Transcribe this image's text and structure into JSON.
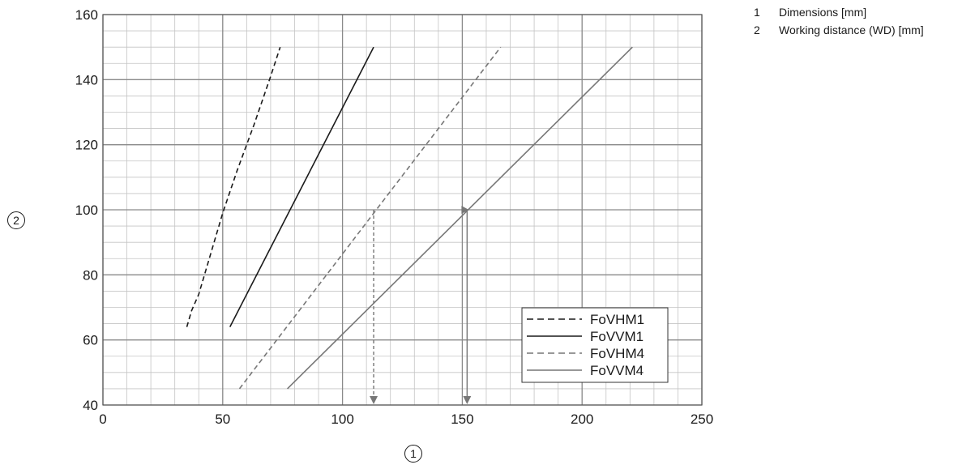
{
  "chart_data": {
    "type": "line",
    "xlim": [
      0,
      250
    ],
    "ylim": [
      40,
      160
    ],
    "x_ticks": [
      0,
      50,
      100,
      150,
      200,
      250
    ],
    "y_ticks": [
      40,
      60,
      80,
      100,
      120,
      140,
      160
    ],
    "xlabel": "1",
    "ylabel": "2",
    "grid": true,
    "legend_position": "bottom-right",
    "series": [
      {
        "name": "FoVHM1",
        "style": "dashed",
        "color": "#1a1a1a",
        "points": [
          [
            35,
            64
          ],
          [
            37,
            69
          ],
          [
            40,
            74
          ],
          [
            50,
            99
          ],
          [
            56,
            112
          ],
          [
            63,
            126
          ],
          [
            70,
            141
          ],
          [
            74,
            150
          ]
        ]
      },
      {
        "name": "FoVVM1",
        "style": "solid",
        "color": "#1a1a1a",
        "points": [
          [
            53,
            64
          ],
          [
            113,
            150
          ]
        ]
      },
      {
        "name": "FoVHM4",
        "style": "dashed",
        "color": "#777777",
        "points": [
          [
            57,
            45
          ],
          [
            166,
            150
          ]
        ]
      },
      {
        "name": "FoVVM4",
        "style": "solid",
        "color": "#777777",
        "points": [
          [
            77,
            45
          ],
          [
            221,
            150
          ]
        ]
      }
    ],
    "annotations": [
      {
        "type": "arrow",
        "style": "dashed",
        "color": "#777777",
        "from": [
          113,
          100
        ],
        "to": [
          113,
          40
        ]
      },
      {
        "type": "arrow",
        "style": "solid",
        "color": "#777777",
        "from": [
          152,
          100
        ],
        "to": [
          152,
          40
        ]
      },
      {
        "type": "marker",
        "style": "solid",
        "color": "#777777",
        "at": [
          150,
          100
        ]
      }
    ]
  },
  "key": [
    {
      "num": "1",
      "label": "Dimensions [mm]"
    },
    {
      "num": "2",
      "label": "Working distance (WD) [mm]"
    }
  ]
}
